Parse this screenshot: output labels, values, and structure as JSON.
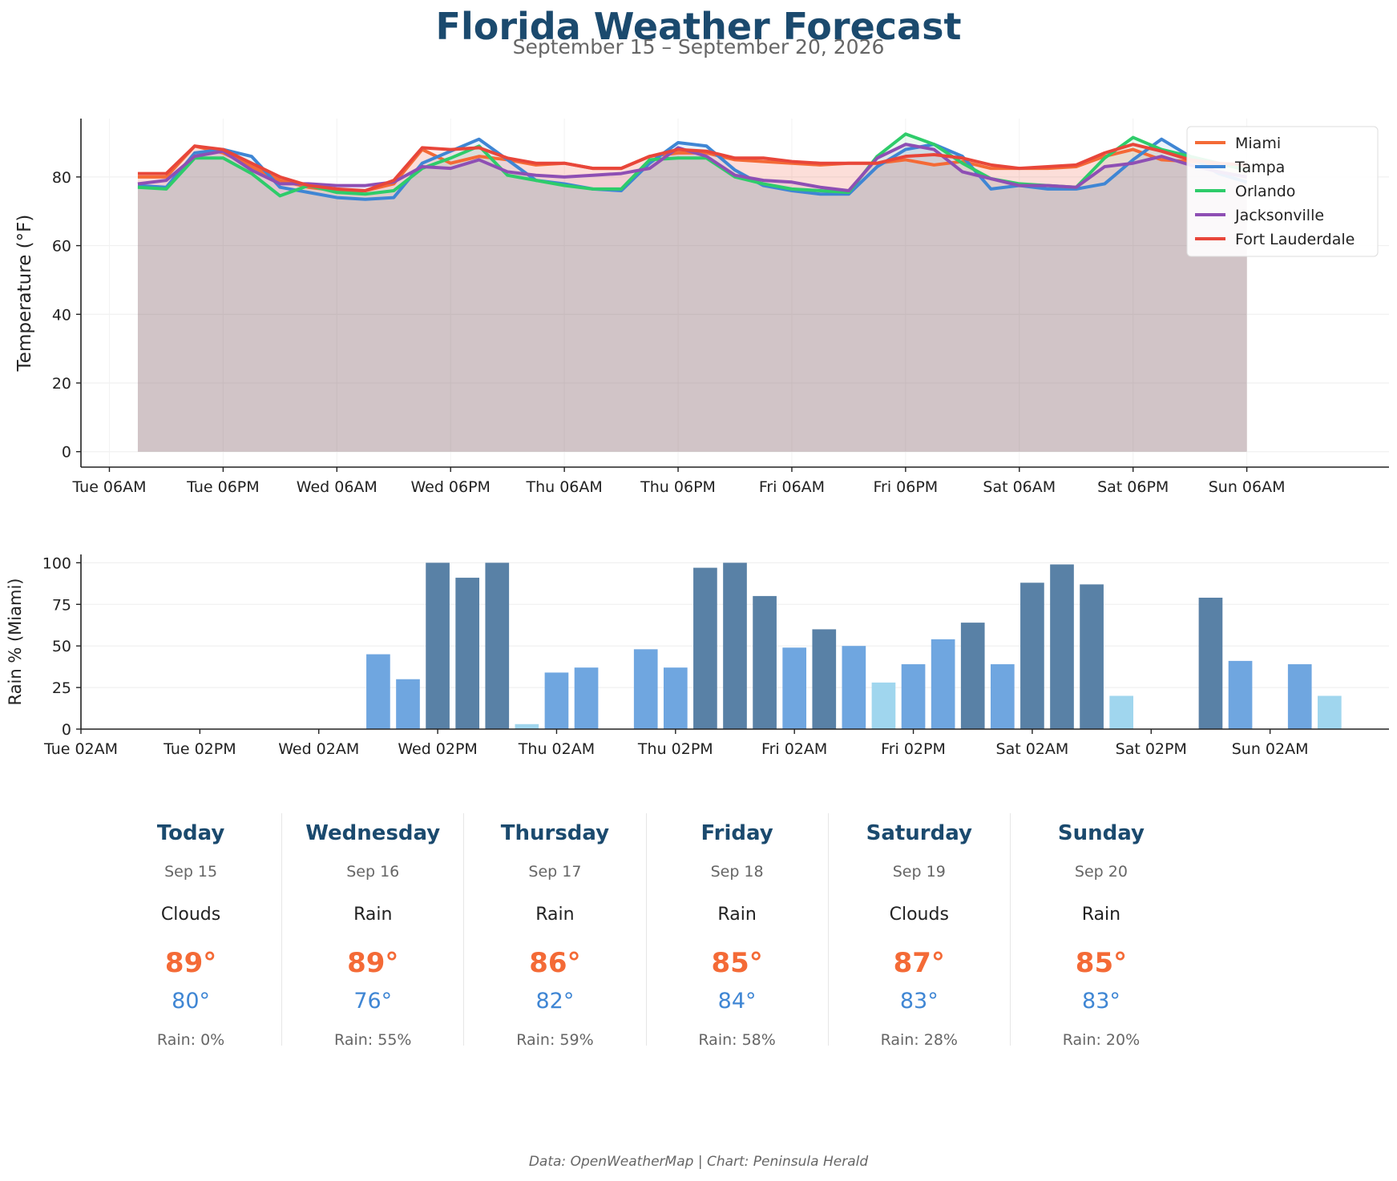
{
  "header": {
    "title": "Florida Weather Forecast",
    "subtitle": "September 15 – September 20, 2026"
  },
  "chart_data": [
    {
      "type": "line",
      "panel": "temperature",
      "ylabel": "Temperature (°F)",
      "xlabel": "",
      "ylim": [
        -4.5,
        97
      ],
      "xlim": [
        -2,
        90
      ],
      "yticks": [
        0,
        20,
        40,
        60,
        80
      ],
      "xticks": [
        {
          "x": 0,
          "label": "Tue 06AM"
        },
        {
          "x": 8,
          "label": "Tue 06PM"
        },
        {
          "x": 16,
          "label": "Wed 06AM"
        },
        {
          "x": 24,
          "label": "Wed 06PM"
        },
        {
          "x": 32,
          "label": "Thu 06AM"
        },
        {
          "x": 40,
          "label": "Thu 06PM"
        },
        {
          "x": 48,
          "label": "Fri 06AM"
        },
        {
          "x": 56,
          "label": "Fri 06PM"
        },
        {
          "x": 64,
          "label": "Sat 06AM"
        },
        {
          "x": 72,
          "label": "Sat 06PM"
        },
        {
          "x": 80,
          "label": "Sun 06AM"
        }
      ],
      "x_time_step_hours": 1.5,
      "grid": true,
      "legend": "top-right",
      "fill_under": true,
      "x": [
        2,
        4,
        6,
        8,
        10,
        12,
        14,
        16,
        18,
        20,
        22,
        24,
        26,
        28,
        30,
        32,
        34,
        36,
        38,
        40,
        42,
        44,
        46,
        48,
        50,
        52,
        54,
        56,
        58,
        60,
        62,
        64,
        66,
        68,
        70,
        72,
        74,
        76,
        78,
        80
      ],
      "series": [
        {
          "name": "Miami",
          "color": "#f46a36",
          "values": [
            80,
            80,
            89,
            87,
            83,
            79,
            77,
            76,
            76,
            78,
            88,
            84,
            86,
            85,
            83.5,
            84,
            82.5,
            82.5,
            86,
            87,
            87,
            85,
            84.5,
            84,
            83.5,
            84,
            84,
            85,
            83.5,
            84.5,
            82.5,
            82.5,
            82.5,
            83,
            86,
            88,
            85,
            84.5,
            83.5,
            83
          ]
        },
        {
          "name": "Tampa",
          "color": "#3f86d4",
          "values": [
            77.5,
            77,
            87,
            88,
            86,
            77,
            75.5,
            74,
            73.5,
            74,
            84,
            87.5,
            91,
            85,
            79,
            78,
            76.5,
            76,
            84,
            90,
            89,
            82,
            77.5,
            76,
            75,
            75,
            83,
            88,
            89.5,
            86,
            76.5,
            77.5,
            76.5,
            76.5,
            78,
            85,
            91,
            86,
            81,
            78.5
          ]
        },
        {
          "name": "Orlando",
          "color": "#2ecc6a",
          "values": [
            77,
            76.5,
            85.5,
            85.5,
            81,
            74.5,
            77.5,
            75.5,
            75,
            76,
            82.5,
            85.5,
            89,
            80.5,
            79,
            77.5,
            76.5,
            76.5,
            85,
            85.5,
            85.5,
            80,
            78,
            76.5,
            76,
            75.5,
            86,
            92.5,
            89.5,
            84,
            79.5,
            78,
            77.5,
            77,
            85.5,
            91.5,
            88,
            86,
            84,
            82
          ]
        },
        {
          "name": "Jacksonville",
          "color": "#8e4fb4",
          "values": [
            78,
            79,
            86,
            87.5,
            82,
            78,
            78,
            77.5,
            77.5,
            78.5,
            83,
            82.5,
            85,
            81.5,
            80.5,
            80,
            80.5,
            81,
            82.5,
            88.5,
            86,
            80.5,
            79,
            78.5,
            77,
            76,
            85.5,
            89.5,
            88,
            81.5,
            79.5,
            77.5,
            77.5,
            77,
            83,
            84,
            86,
            83.5,
            81.5,
            80
          ]
        },
        {
          "name": "Fort Lauderdale",
          "color": "#e8463a",
          "values": [
            81,
            81,
            89,
            88,
            84,
            80,
            77.5,
            76.5,
            76,
            79,
            88.5,
            88,
            88.5,
            85.5,
            84,
            84,
            82.5,
            82.5,
            86,
            88,
            87.5,
            85.5,
            85.5,
            84.5,
            84,
            84,
            84,
            86,
            86.5,
            85.5,
            83.5,
            82.5,
            83,
            83.5,
            87,
            89.5,
            87.5,
            85,
            84,
            83.5
          ]
        }
      ]
    },
    {
      "type": "bar",
      "panel": "rain",
      "ylabel": "Rain % (Miami)",
      "xlabel": "",
      "ylim": [
        0,
        105
      ],
      "xlim": [
        0,
        88
      ],
      "yticks": [
        0,
        25,
        50,
        75,
        100
      ],
      "xticks": [
        {
          "x": 0,
          "label": "Tue 02AM"
        },
        {
          "x": 8,
          "label": "Tue 02PM"
        },
        {
          "x": 16,
          "label": "Wed 02AM"
        },
        {
          "x": 24,
          "label": "Wed 02PM"
        },
        {
          "x": 32,
          "label": "Thu 02AM"
        },
        {
          "x": 40,
          "label": "Thu 02PM"
        },
        {
          "x": 48,
          "label": "Fri 02AM"
        },
        {
          "x": 56,
          "label": "Fri 02PM"
        },
        {
          "x": 64,
          "label": "Sat 02AM"
        },
        {
          "x": 72,
          "label": "Sat 02PM"
        },
        {
          "x": 80,
          "label": "Sun 02AM"
        }
      ],
      "grid": true,
      "x": [
        6,
        8,
        10,
        12,
        14,
        16,
        18,
        20,
        22,
        24,
        26,
        28,
        30,
        32,
        34,
        36,
        38,
        40,
        42,
        44,
        46,
        48,
        50,
        52,
        54,
        56,
        58,
        60,
        62,
        64,
        66,
        68,
        70,
        72,
        74,
        76,
        78,
        80,
        82,
        84
      ],
      "values": [
        0,
        0,
        0,
        0,
        0,
        0,
        0,
        45,
        30,
        100,
        91,
        100,
        3,
        34,
        37,
        0,
        48,
        37,
        97,
        100,
        80,
        49,
        60,
        50,
        28,
        39,
        54,
        64,
        39,
        88,
        99,
        87,
        20,
        0,
        0,
        79,
        41,
        0,
        39,
        20
      ],
      "color_bands": {
        "light": "#a0d6ee",
        "medium": "#6fa6e0",
        "dark": "#5981a6"
      }
    }
  ],
  "forecast": [
    {
      "day": "Today",
      "date": "Sep 15",
      "condition": "Clouds",
      "high": "89°",
      "low": "80°",
      "rain": "Rain: 0%"
    },
    {
      "day": "Wednesday",
      "date": "Sep 16",
      "condition": "Rain",
      "high": "89°",
      "low": "76°",
      "rain": "Rain: 55%"
    },
    {
      "day": "Thursday",
      "date": "Sep 17",
      "condition": "Rain",
      "high": "86°",
      "low": "82°",
      "rain": "Rain: 59%"
    },
    {
      "day": "Friday",
      "date": "Sep 18",
      "condition": "Rain",
      "high": "85°",
      "low": "84°",
      "rain": "Rain: 58%"
    },
    {
      "day": "Saturday",
      "date": "Sep 19",
      "condition": "Clouds",
      "high": "87°",
      "low": "83°",
      "rain": "Rain: 28%"
    },
    {
      "day": "Sunday",
      "date": "Sep 20",
      "condition": "Rain",
      "high": "85°",
      "low": "83°",
      "rain": "Rain: 20%"
    }
  ],
  "footer": {
    "credit": "Data: OpenWeatherMap | Chart: Peninsula Herald"
  }
}
